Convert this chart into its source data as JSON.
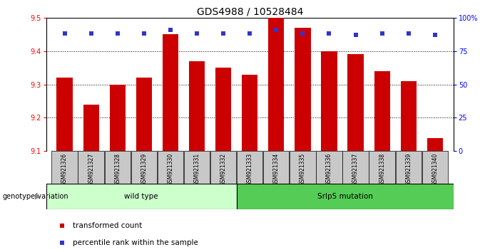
{
  "title": "GDS4988 / 10528484",
  "samples": [
    "GSM921326",
    "GSM921327",
    "GSM921328",
    "GSM921329",
    "GSM921330",
    "GSM921331",
    "GSM921332",
    "GSM921333",
    "GSM921334",
    "GSM921335",
    "GSM921336",
    "GSM921337",
    "GSM921338",
    "GSM921339",
    "GSM921340"
  ],
  "bar_values": [
    9.32,
    9.24,
    9.3,
    9.32,
    9.45,
    9.37,
    9.35,
    9.33,
    9.5,
    9.47,
    9.4,
    9.39,
    9.34,
    9.31,
    9.14
  ],
  "percentile_values": [
    88,
    88,
    88,
    88,
    91,
    88,
    88,
    88,
    91,
    88,
    88,
    87,
    88,
    88,
    87
  ],
  "bar_color": "#cc0000",
  "percentile_color": "#3333cc",
  "ylim_left": [
    9.1,
    9.5
  ],
  "ylim_right": [
    0,
    100
  ],
  "yticks_left": [
    9.1,
    9.2,
    9.3,
    9.4,
    9.5
  ],
  "yticks_right": [
    0,
    25,
    50,
    75,
    100
  ],
  "ytick_labels_right": [
    "0",
    "25",
    "50",
    "75",
    "100%"
  ],
  "grid_values": [
    9.2,
    9.3,
    9.4
  ],
  "wild_type_count": 7,
  "wild_type_label": "wild type",
  "mutation_label": "Srlp5 mutation",
  "genotype_label": "genotype/variation",
  "legend_bar_label": "transformed count",
  "legend_percentile_label": "percentile rank within the sample",
  "bg_color": "#ffffff",
  "tick_bg_color": "#c8c8c8",
  "wild_type_bg": "#ccffcc",
  "mutation_bg": "#55cc55",
  "title_fontsize": 10,
  "tick_fontsize": 7,
  "bar_width": 0.6,
  "percentile_marker_size": 5
}
